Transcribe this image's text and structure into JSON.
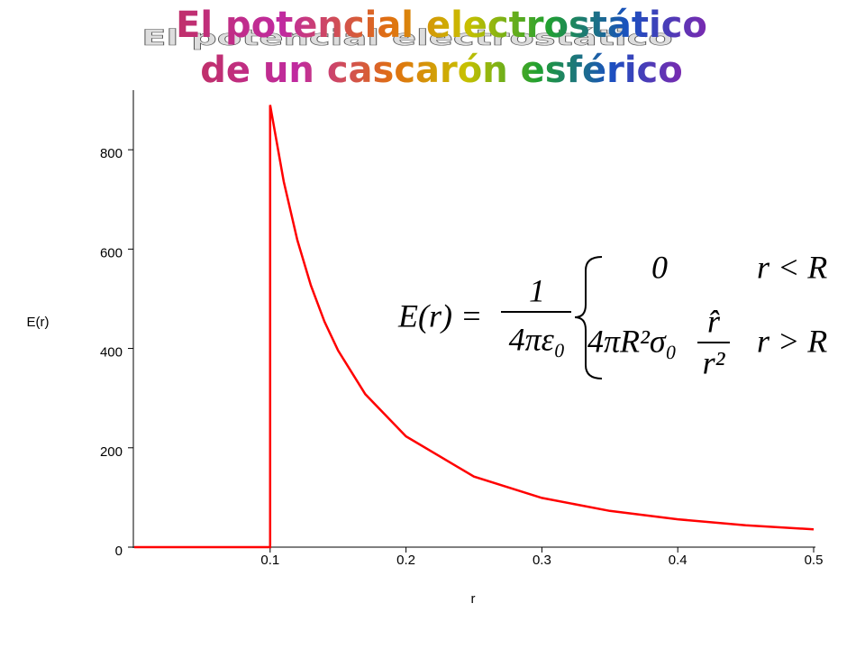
{
  "chart_data": {
    "type": "line",
    "title": "El potencial electrostático",
    "subtitle": "de un cascarón esférico",
    "x_label": "r",
    "y_label": "E(r)",
    "x": [
      0,
      0.1,
      0.1,
      0.11,
      0.12,
      0.13,
      0.14,
      0.15,
      0.17,
      0.2,
      0.25,
      0.3,
      0.35,
      0.4,
      0.45,
      0.5
    ],
    "values": [
      0,
      0,
      890,
      736,
      618,
      527,
      454,
      396,
      308,
      223,
      142,
      99,
      73,
      56,
      44,
      36
    ],
    "color": "#ff0000",
    "xlim": [
      0,
      0.5
    ],
    "xticks": [
      0.1,
      0.2,
      0.3,
      0.4,
      0.5
    ],
    "ylim": [
      0,
      920
    ],
    "yticks": [
      0,
      200,
      400,
      600,
      800
    ],
    "equation": {
      "lhs": "E(r) =",
      "numerator": "1",
      "denominator": "4πε₀",
      "case1_value": "0",
      "case1_condition": "r < R",
      "case2_value": "4πR²σ₀",
      "case2_numerator": "r̂",
      "case2_denominator": "r²",
      "case2_condition": "r > R"
    }
  }
}
